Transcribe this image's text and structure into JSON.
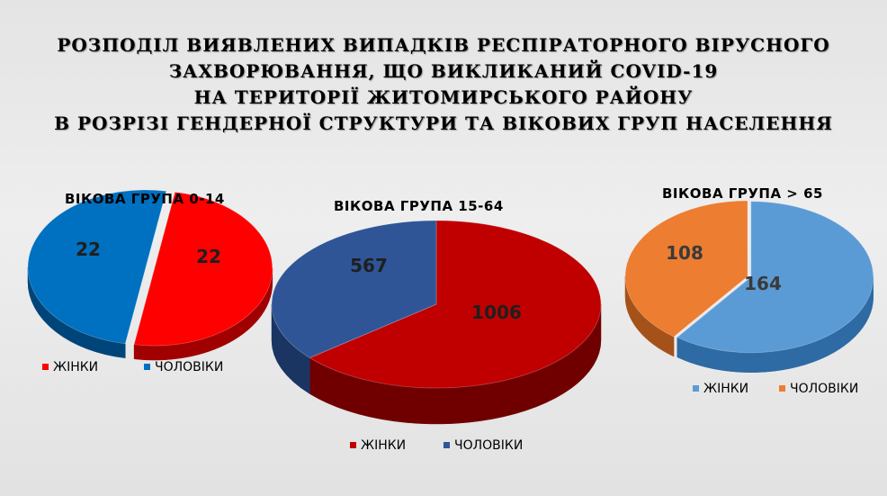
{
  "title": {
    "line1": "РОЗПОДІЛ ВИЯВЛЕНИХ ВИПАДКІВ РЕСПІРАТОРНОГО ВІРУСНОГО",
    "line2": "ЗАХВОРЮВАННЯ, ЩО ВИКЛИКАНИЙ COVID-19",
    "line3": "НА ТЕРИТОРІЇ ЖИТОМИРСЬКОГО РАЙОНУ",
    "line4": "В РОЗРІЗІ ГЕНДЕРНОЇ СТРУКТУРИ ТА ВІКОВИХ ГРУП НАСЕЛЕННЯ"
  },
  "chart_data": [
    {
      "type": "pie",
      "title": "ВІКОВА ГРУПА 0-14",
      "categories": [
        "ЖІНКИ",
        "ЧОЛОВІКИ"
      ],
      "values": [
        22,
        22
      ],
      "colors": [
        "#ff0000",
        "#0070c0"
      ],
      "side_colors": [
        "#a00000",
        "#00457a"
      ],
      "label_colors": [
        "#1f1f1f",
        "#1f1f1f"
      ],
      "legend": "bottom"
    },
    {
      "type": "pie",
      "title": "ВІКОВА ГРУПА 15-64",
      "categories": [
        "ЖІНКИ",
        "ЧОЛОВІКИ"
      ],
      "values": [
        1006,
        567
      ],
      "colors": [
        "#c00000",
        "#2f5597"
      ],
      "side_colors": [
        "#700000",
        "#1b3563"
      ],
      "label_colors": [
        "#1f1f1f",
        "#1f1f1f"
      ],
      "legend": "bottom"
    },
    {
      "type": "pie",
      "title": "ВІКОВА ГРУПА > 65",
      "categories": [
        "ЖІНКИ",
        "ЧОЛОВІКИ"
      ],
      "values": [
        164,
        108
      ],
      "colors": [
        "#5b9bd5",
        "#ed7d31"
      ],
      "side_colors": [
        "#2e6aa3",
        "#a4521a"
      ],
      "label_colors": [
        "#3a3a3a",
        "#3a3a3a"
      ],
      "legend": "bottom-right"
    }
  ]
}
